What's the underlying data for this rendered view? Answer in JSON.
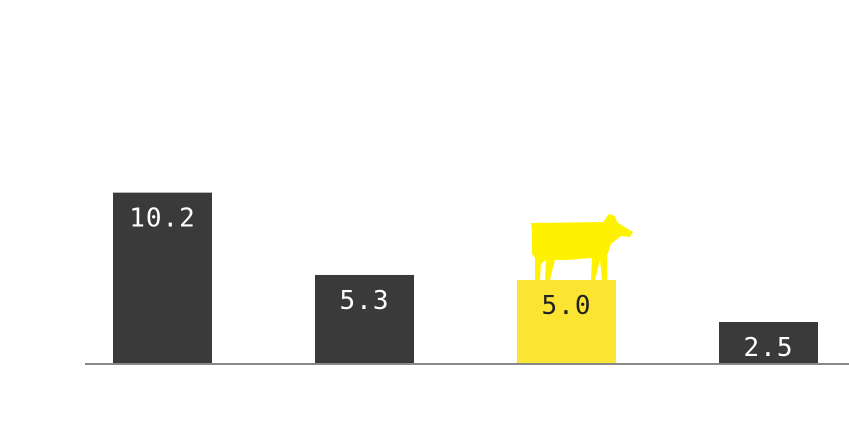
{
  "chart_data": {
    "type": "bar",
    "categories": [
      "",
      "",
      "",
      ""
    ],
    "values": [
      10.2,
      5.3,
      5.0,
      2.5
    ],
    "value_labels": [
      "10.2",
      "5.3",
      "5.0",
      "2.5"
    ],
    "highlight_index": 2,
    "highlight_icon": "cow-icon",
    "title": "",
    "xlabel": "",
    "ylabel": "",
    "grid": false,
    "colors": {
      "bar": "#3a3a3a",
      "highlight": "#fce433",
      "icon": "#fff200",
      "label_on_dark": "#ffffff",
      "label_on_highlight": "#222222",
      "baseline": "#888888"
    }
  }
}
